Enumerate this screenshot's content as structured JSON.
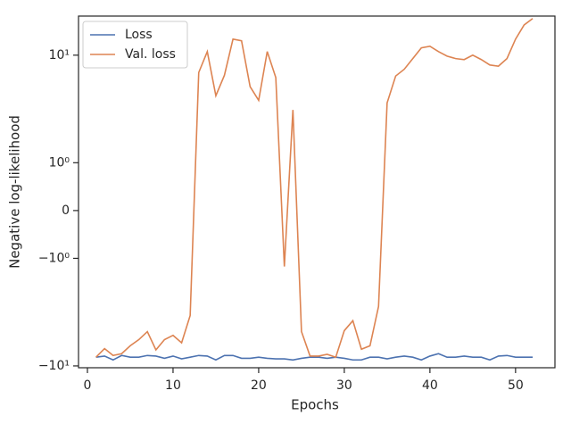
{
  "chart_data": {
    "type": "line",
    "xlabel": "Epochs",
    "ylabel": "Negative log-likelihood",
    "yscale": "symlog",
    "linthresh": 1,
    "linscale": 0.4,
    "x": [
      1,
      2,
      3,
      4,
      5,
      6,
      7,
      8,
      9,
      10,
      11,
      12,
      13,
      14,
      15,
      16,
      17,
      18,
      19,
      20,
      21,
      22,
      23,
      24,
      25,
      26,
      27,
      28,
      29,
      30,
      31,
      32,
      33,
      34,
      35,
      36,
      37,
      38,
      39,
      40,
      41,
      42,
      43,
      44,
      45,
      46,
      47,
      48,
      49,
      50,
      51,
      52
    ],
    "series": [
      {
        "name": "Loss",
        "color": "#4c72b0",
        "values": [
          -8.3,
          -8.1,
          -8.8,
          -8.0,
          -8.3,
          -8.3,
          -8.0,
          -8.1,
          -8.5,
          -8.1,
          -8.6,
          -8.3,
          -8.0,
          -8.1,
          -8.8,
          -8.0,
          -8.0,
          -8.5,
          -8.5,
          -8.3,
          -8.5,
          -8.6,
          -8.6,
          -8.8,
          -8.5,
          -8.3,
          -8.3,
          -8.5,
          -8.3,
          -8.5,
          -8.8,
          -8.8,
          -8.3,
          -8.3,
          -8.6,
          -8.3,
          -8.1,
          -8.3,
          -8.8,
          -8.1,
          -7.7,
          -8.3,
          -8.3,
          -8.1,
          -8.3,
          -8.3,
          -8.8,
          -8.1,
          -8.0,
          -8.3,
          -8.3,
          -8.3
        ]
      },
      {
        "name": "Val. loss",
        "color": "#dd8452",
        "values": [
          -8.3,
          -6.9,
          -8.0,
          -7.7,
          -6.5,
          -5.7,
          -4.8,
          -7.1,
          -5.7,
          -5.2,
          -6.1,
          -3.4,
          6.9,
          10.8,
          4.2,
          6.5,
          14.1,
          13.6,
          5.1,
          3.8,
          10.8,
          6.2,
          -1.19,
          3.1,
          -4.8,
          -8.1,
          -8.1,
          -7.8,
          -8.3,
          -4.7,
          -3.8,
          -7.0,
          -6.5,
          -2.8,
          3.6,
          6.4,
          7.4,
          9.3,
          11.7,
          12.1,
          10.8,
          9.8,
          9.3,
          9.1,
          10.0,
          9.1,
          8.1,
          7.9,
          9.3,
          14.1,
          19.1,
          21.9
        ]
      }
    ],
    "xlim": [
      -1.04,
      54.6
    ],
    "xticks": [
      0,
      10,
      20,
      30,
      40,
      50
    ],
    "ylim": [
      -10.4,
      23.1
    ],
    "yticks": [
      {
        "value": -10,
        "label": "−10¹"
      },
      {
        "value": -1,
        "label": "−10⁰"
      },
      0,
      {
        "value": 1,
        "label": "10⁰"
      },
      {
        "value": 10,
        "label": "10¹"
      }
    ],
    "grid": false,
    "legend": "upper left"
  }
}
